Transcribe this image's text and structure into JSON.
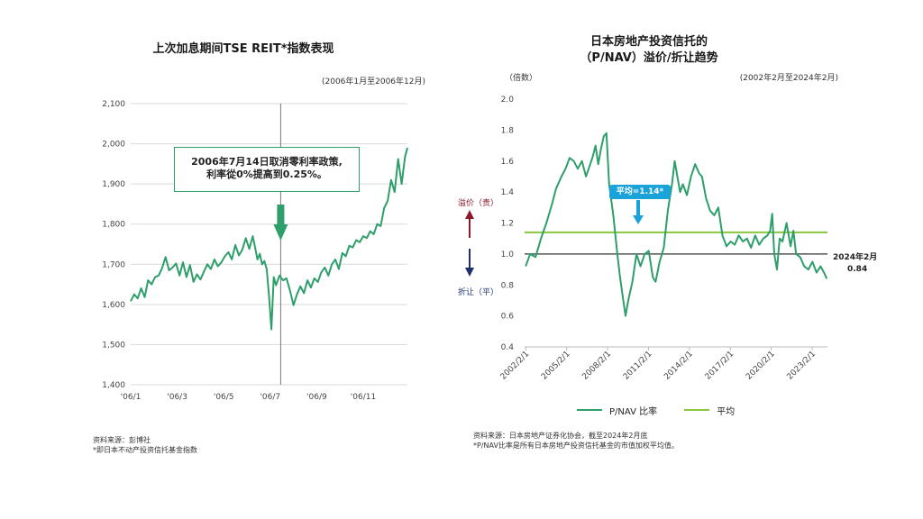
{
  "left": {
    "title": "上次加息期间TSE REIT*指数表现",
    "subtitle": "(2006年1月至2006年12月)",
    "annotation_line1": "2006年7月14日取消零利率政策,",
    "annotation_line2": "利率從0%提高到0.25%。",
    "source_line1": "资料来源：彭博社",
    "source_line2": "*即日本不动产投资信托基金指数"
  },
  "right": {
    "title_line1": "日本房地产投资信托的",
    "title_line2": "（P/NAV）溢价/折让趋势",
    "subtitle": "(2002年2月至2024年2月)",
    "unit_label": "（倍数）",
    "premium_label": "溢价（贵）",
    "discount_label": "折让（平）",
    "avg_label": "平均=1.14*",
    "end_label_1": "2024年2月",
    "end_label_2": "0.84",
    "legend_series": "P/NAV 比率",
    "legend_avg": "平均",
    "source_line1": "资料来源：日本房地产证券化协会，截至2024年2月底",
    "source_line2": "*P/NAV比率是所有日本房地产投资信托基金的市值加权平均值。"
  },
  "colors": {
    "series": "#2e9e6b",
    "average": "#8cc63f",
    "premium": "#8b1a2b",
    "discount": "#1f2f6b",
    "badge": "#1aa3d9",
    "annotation_border": "#2e9e6b",
    "arrow": "#2e9e6b"
  },
  "chart_data": [
    {
      "type": "line",
      "title": "上次加息期间TSE REIT*指数表现",
      "xlabel": "",
      "ylabel": "",
      "x_ticks": [
        "'06/1",
        "'06/3",
        "'06/5",
        "'06/7",
        "'06/9",
        "'06/11"
      ],
      "y_ticks": [
        "1,400",
        "1,500",
        "1,600",
        "1,700",
        "1,800",
        "1,900",
        "2,000",
        "2,100"
      ],
      "ylim": [
        1400,
        2100
      ],
      "xlim": [
        0,
        11.9
      ],
      "grid": "horizontal",
      "series": [
        {
          "x": [
            0,
            0.15,
            0.3,
            0.45,
            0.6,
            0.75,
            0.9,
            1.05,
            1.2,
            1.35,
            1.5,
            1.65,
            1.8,
            1.95,
            2.1,
            2.25,
            2.4,
            2.55,
            2.7,
            2.85,
            3.0,
            3.15,
            3.3,
            3.45,
            3.6,
            3.75,
            3.9,
            4.05,
            4.2,
            4.35,
            4.5,
            4.65,
            4.8,
            4.95,
            5.1,
            5.25,
            5.35,
            5.45,
            5.55,
            5.65,
            5.75,
            5.85,
            5.95,
            6.05,
            6.15,
            6.25,
            6.4,
            6.55,
            6.7,
            6.85,
            7.0,
            7.15,
            7.3,
            7.45,
            7.6,
            7.75,
            7.9,
            8.05,
            8.2,
            8.35,
            8.5,
            8.65,
            8.8,
            8.95,
            9.1,
            9.25,
            9.4,
            9.55,
            9.7,
            9.85,
            10.0,
            10.15,
            10.3,
            10.45,
            10.6,
            10.75,
            10.9,
            11.05,
            11.2,
            11.35,
            11.5,
            11.65,
            11.8,
            11.9
          ],
          "values": [
            1608,
            1625,
            1615,
            1640,
            1618,
            1660,
            1650,
            1668,
            1672,
            1690,
            1718,
            1685,
            1692,
            1702,
            1672,
            1705,
            1668,
            1698,
            1656,
            1675,
            1662,
            1682,
            1700,
            1688,
            1712,
            1695,
            1705,
            1720,
            1730,
            1712,
            1748,
            1722,
            1736,
            1765,
            1738,
            1770,
            1742,
            1712,
            1726,
            1700,
            1708,
            1688,
            1620,
            1538,
            1668,
            1648,
            1672,
            1660,
            1665,
            1635,
            1598,
            1625,
            1645,
            1628,
            1660,
            1642,
            1665,
            1656,
            1680,
            1692,
            1672,
            1700,
            1712,
            1688,
            1728,
            1720,
            1746,
            1742,
            1760,
            1755,
            1770,
            1765,
            1782,
            1775,
            1800,
            1795,
            1840,
            1858,
            1910,
            1880,
            1962,
            1900,
            1968,
            1990
          ]
        }
      ],
      "annotation_date": "2006/7/14"
    },
    {
      "type": "line",
      "title": "日本房地产投资信托的（P/NAV）溢价/折让趋势",
      "xlabel": "",
      "ylabel": "（倍数）",
      "x_ticks": [
        "2002/2/1",
        "2005/2/1",
        "2008/2/1",
        "2011/2/1",
        "2014/2/1",
        "2017/2/1",
        "2020/2/1",
        "2023/2/1"
      ],
      "y_ticks": [
        "0.4",
        "0.6",
        "0.8",
        "1.0",
        "1.2",
        "1.4",
        "1.6",
        "1.8",
        "2.0"
      ],
      "ylim": [
        0.4,
        2.0
      ],
      "xlim": [
        2002.0,
        2024.2
      ],
      "grid": "none",
      "reference_lines": [
        {
          "name": "平均",
          "value": 1.14
        },
        {
          "name": "",
          "value": 1.0
        }
      ],
      "series": [
        {
          "name": "P/NAV 比率",
          "x": [
            2002.08,
            2002.4,
            2002.8,
            2003.2,
            2003.6,
            2004.0,
            2004.3,
            2004.7,
            2005.0,
            2005.3,
            2005.6,
            2005.9,
            2006.2,
            2006.5,
            2006.7,
            2007.0,
            2007.2,
            2007.4,
            2007.6,
            2007.8,
            2008.0,
            2008.2,
            2008.5,
            2008.8,
            2009.0,
            2009.2,
            2009.4,
            2009.6,
            2009.9,
            2010.2,
            2010.5,
            2010.8,
            2011.1,
            2011.4,
            2011.6,
            2011.9,
            2012.2,
            2012.5,
            2012.8,
            2013.0,
            2013.2,
            2013.4,
            2013.6,
            2013.9,
            2014.2,
            2014.5,
            2014.8,
            2015.0,
            2015.3,
            2015.6,
            2015.9,
            2016.2,
            2016.5,
            2016.8,
            2017.1,
            2017.4,
            2017.7,
            2018.0,
            2018.3,
            2018.6,
            2018.9,
            2019.2,
            2019.5,
            2019.8,
            2020.0,
            2020.15,
            2020.3,
            2020.5,
            2020.7,
            2020.9,
            2021.2,
            2021.5,
            2021.7,
            2021.9,
            2022.2,
            2022.5,
            2022.8,
            2023.1,
            2023.4,
            2023.7,
            2024.0,
            2024.15
          ],
          "values": [
            0.92,
            1.0,
            0.98,
            1.1,
            1.2,
            1.32,
            1.42,
            1.5,
            1.55,
            1.62,
            1.6,
            1.55,
            1.6,
            1.5,
            1.55,
            1.63,
            1.7,
            1.58,
            1.68,
            1.76,
            1.78,
            1.45,
            1.25,
            1.0,
            0.85,
            0.72,
            0.6,
            0.7,
            0.82,
            1.0,
            0.92,
            1.0,
            1.02,
            0.85,
            0.82,
            0.95,
            1.04,
            1.28,
            1.45,
            1.6,
            1.5,
            1.4,
            1.45,
            1.38,
            1.5,
            1.58,
            1.52,
            1.5,
            1.36,
            1.28,
            1.25,
            1.3,
            1.12,
            1.05,
            1.08,
            1.06,
            1.12,
            1.08,
            1.1,
            1.04,
            1.12,
            1.06,
            1.1,
            1.12,
            1.15,
            1.26,
            1.0,
            0.9,
            1.1,
            1.08,
            1.2,
            1.05,
            1.15,
            1.0,
            0.98,
            0.92,
            0.9,
            0.95,
            0.88,
            0.92,
            0.87,
            0.84
          ]
        },
        {
          "name": "平均",
          "x": [
            2002.08,
            2024.15
          ],
          "values": [
            1.14,
            1.14
          ]
        }
      ]
    }
  ]
}
